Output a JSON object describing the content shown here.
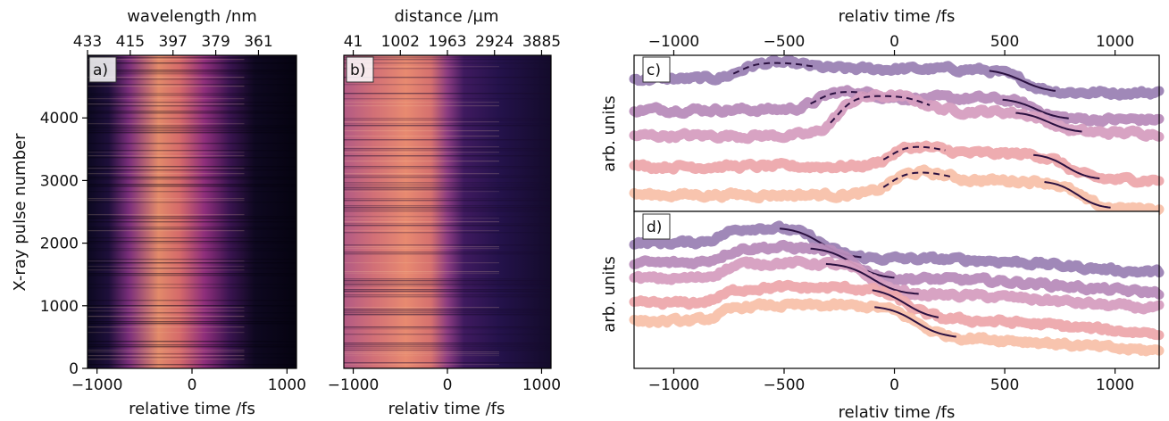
{
  "chart_data": [
    {
      "panel": "a)",
      "type": "heatmap",
      "xlabel": "relative time /fs",
      "ylabel": "X-ray pulse number",
      "top_label": "wavelength /nm",
      "xlim": [
        -1100,
        1100
      ],
      "ylim": [
        0,
        5000
      ],
      "xticks": [
        -1000,
        0,
        1000
      ],
      "yticks": [
        0,
        1000,
        2000,
        3000,
        4000
      ],
      "top_ticks": [
        "433",
        "415",
        "397",
        "379",
        "361"
      ],
      "top_tick_x": [
        -1100,
        -650,
        -200,
        250,
        700
      ]
    },
    {
      "panel": "b)",
      "type": "heatmap",
      "xlabel": "relativ time /fs",
      "top_label": "distance /µm",
      "xlim": [
        -1100,
        1100
      ],
      "ylim": [
        0,
        5000
      ],
      "xticks": [
        -1000,
        0,
        1000
      ],
      "top_ticks": [
        "41",
        "1002",
        "1963",
        "2924",
        "3885"
      ],
      "top_tick_x": [
        -1000,
        -500,
        0,
        500,
        1000
      ]
    },
    {
      "panel": "c)",
      "type": "line",
      "ylabel": "arb. units",
      "top_label": "relativ time /fs",
      "xlim": [
        -1180,
        1200
      ],
      "top_ticks": [
        -1000,
        -500,
        0,
        500,
        1000
      ],
      "series": [
        {
          "color": "#9b82b4",
          "offset": 4.5,
          "bump": {
            "t0": -700,
            "t1": -450,
            "h": 0.35
          },
          "drop": {
            "t": 580,
            "w": 60,
            "h": -0.5
          }
        },
        {
          "color": "#b88cba",
          "offset": 3.85,
          "bump": {
            "t0": -350,
            "t1": -150,
            "h": 0.4
          },
          "drop": {
            "t": 640,
            "w": 55,
            "h": -0.45
          }
        },
        {
          "color": "#d69ec0",
          "offset": 3.3,
          "bump": {
            "t0": -260,
            "t1": 80,
            "h": 0.85
          },
          "drop": {
            "t": 700,
            "w": 55,
            "h": -0.45
          }
        },
        {
          "color": "#eda8ac",
          "offset": 2.65,
          "bump": {
            "t0": -20,
            "t1": 150,
            "h": 0.45
          },
          "drop": {
            "t": 780,
            "w": 50,
            "h": -0.55
          }
        },
        {
          "color": "#f8c1aa",
          "offset": 2.05,
          "bump": {
            "t0": -20,
            "t1": 180,
            "h": 0.5
          },
          "drop": {
            "t": 830,
            "w": 50,
            "h": -0.6
          }
        }
      ]
    },
    {
      "panel": "d)",
      "type": "line",
      "xlabel": "relativ time /fs",
      "ylabel": "arb. units",
      "xlim": [
        -1180,
        1200
      ],
      "xticks": [
        -1000,
        -500,
        0,
        500,
        1000
      ],
      "series": [
        {
          "color": "#9b82b4",
          "offset": 4.2,
          "fit_t0": -520,
          "fit_t1": -150
        },
        {
          "color": "#b88cba",
          "offset": 3.75,
          "fit_t0": -380,
          "fit_t1": 0
        },
        {
          "color": "#d69ec0",
          "offset": 3.4,
          "fit_t0": -310,
          "fit_t1": 110
        },
        {
          "color": "#eda8ac",
          "offset": 2.85,
          "fit_t0": -100,
          "fit_t1": 200
        },
        {
          "color": "#f8c1aa",
          "offset": 2.45,
          "fit_t0": -90,
          "fit_t1": 280
        }
      ]
    }
  ]
}
